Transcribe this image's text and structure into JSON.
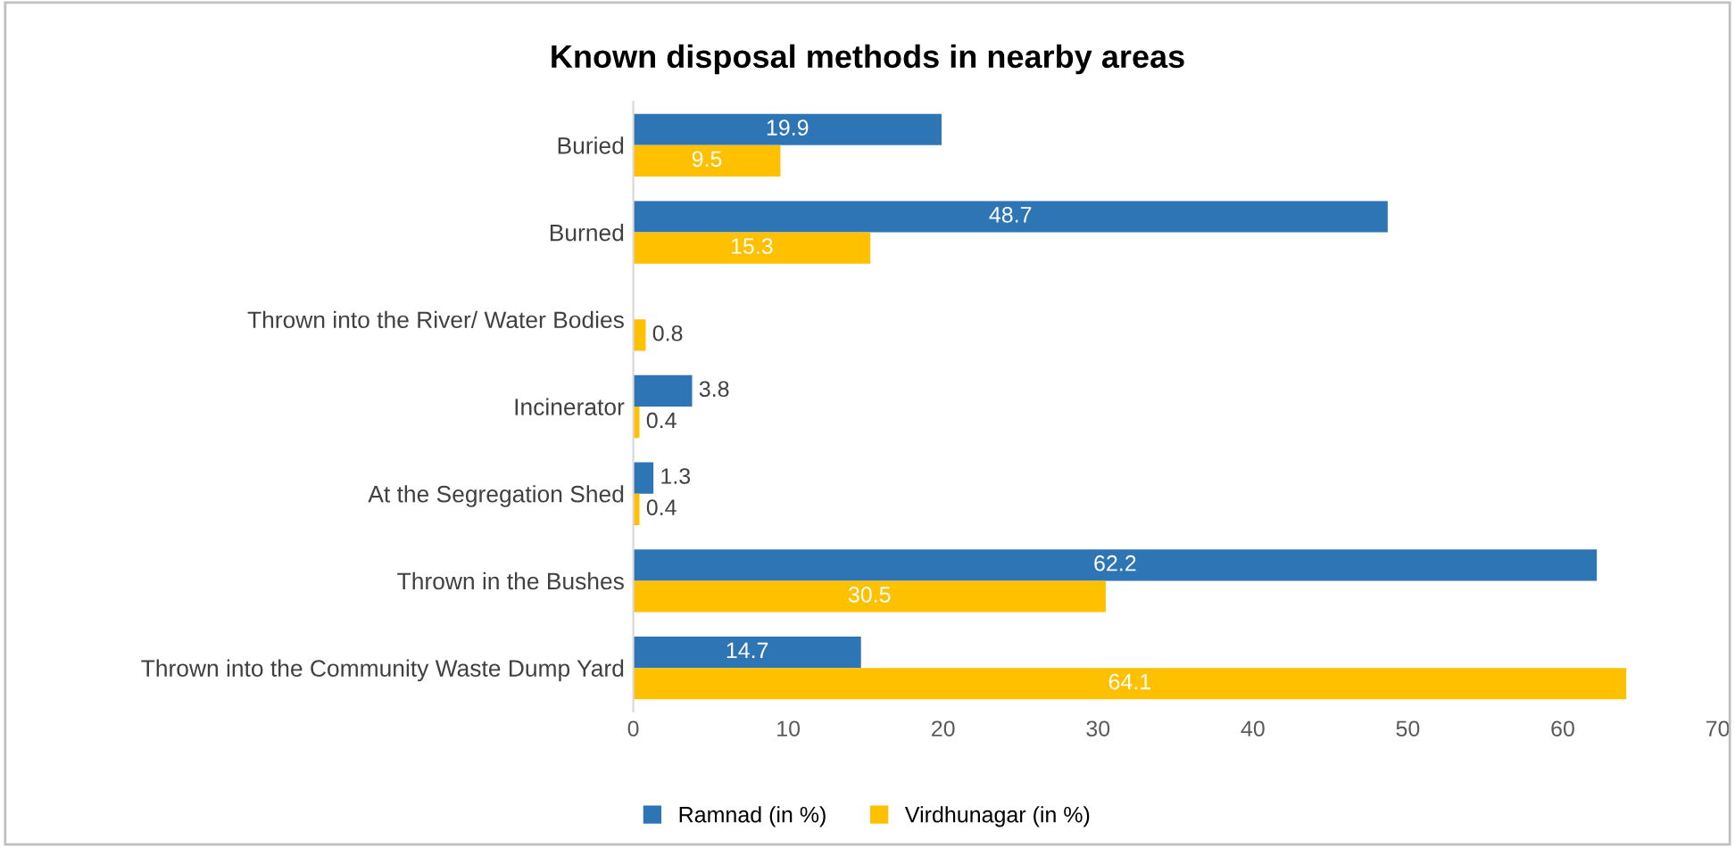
{
  "chart_data": {
    "type": "bar",
    "orientation": "horizontal",
    "title": "Known disposal methods in nearby areas",
    "categories": [
      "Buried",
      "Burned",
      "Thrown into the River/ Water Bodies",
      "Incinerator",
      "At the Segregation Shed",
      "Thrown in the Bushes",
      "Thrown into the Community Waste Dump Yard"
    ],
    "series": [
      {
        "name": "Ramnad (in %)",
        "color": "#2e75b6",
        "values": [
          19.9,
          48.7,
          null,
          3.8,
          1.3,
          62.2,
          14.7
        ]
      },
      {
        "name": "Virdhunagar (in %)",
        "color": "#ffc000",
        "values": [
          9.5,
          15.3,
          0.8,
          0.4,
          0.4,
          30.5,
          64.1
        ]
      }
    ],
    "xlim": [
      0,
      70
    ],
    "xticks": [
      0,
      10,
      20,
      30,
      40,
      50,
      60,
      70
    ],
    "grid": false,
    "legend": "bottom",
    "data_labels": true
  }
}
